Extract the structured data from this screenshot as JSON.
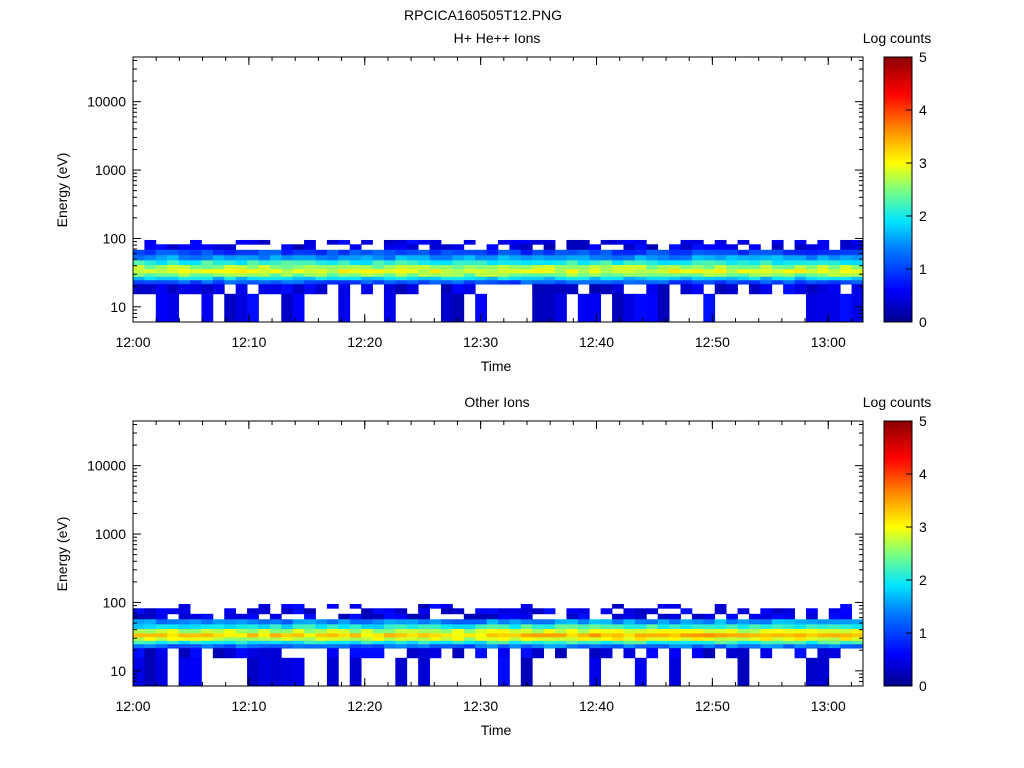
{
  "figure_title": "RPCICA160505T12.PNG",
  "chart_data": [
    {
      "type": "heatmap",
      "title": "H+ He++ Ions",
      "xlabel": "Time",
      "ylabel": "Energy (eV)",
      "yscale": "log",
      "ylim": [
        6,
        45000
      ],
      "xlim": [
        "12:00",
        "13:03"
      ],
      "x_ticks": [
        "12:00",
        "12:10",
        "12:20",
        "12:30",
        "12:40",
        "12:50",
        "13:00"
      ],
      "y_ticks": [
        "10",
        "100",
        "1000",
        "10000"
      ],
      "colorbar": {
        "label": "Log counts",
        "range": [
          0,
          5
        ],
        "ticks": [
          "0",
          "1",
          "2",
          "3",
          "4",
          "5"
        ]
      },
      "energy_band_eV": [
        22,
        95
      ],
      "intensity_profile": [
        {
          "energy_eV": 90,
          "log_counts": 0.5
        },
        {
          "energy_eV": 75,
          "log_counts": 0.7
        },
        {
          "energy_eV": 62,
          "log_counts": 1.0
        },
        {
          "energy_eV": 52,
          "log_counts": 1.5
        },
        {
          "energy_eV": 44,
          "log_counts": 2.1
        },
        {
          "energy_eV": 38,
          "log_counts": 2.6
        },
        {
          "energy_eV": 33,
          "log_counts": 2.9
        },
        {
          "energy_eV": 29,
          "log_counts": 2.5
        },
        {
          "energy_eV": 26,
          "log_counts": 1.8
        },
        {
          "energy_eV": 23,
          "log_counts": 1.1
        },
        {
          "energy_eV": 20,
          "log_counts": 0.6
        },
        {
          "energy_eV": 12,
          "log_counts": 0.3
        }
      ]
    },
    {
      "type": "heatmap",
      "title": "Other Ions",
      "xlabel": "Time",
      "ylabel": "Energy (eV)",
      "yscale": "log",
      "ylim": [
        6,
        45000
      ],
      "xlim": [
        "12:00",
        "13:03"
      ],
      "x_ticks": [
        "12:00",
        "12:10",
        "12:20",
        "12:30",
        "12:40",
        "12:50",
        "13:00"
      ],
      "y_ticks": [
        "10",
        "100",
        "1000",
        "10000"
      ],
      "colorbar": {
        "label": "Log counts",
        "range": [
          0,
          5
        ],
        "ticks": [
          "0",
          "1",
          "2",
          "3",
          "4",
          "5"
        ]
      },
      "energy_band_eV": [
        22,
        95
      ],
      "intensity_profile": [
        {
          "energy_eV": 90,
          "log_counts": 0.4
        },
        {
          "energy_eV": 75,
          "log_counts": 0.6
        },
        {
          "energy_eV": 62,
          "log_counts": 0.9
        },
        {
          "energy_eV": 52,
          "log_counts": 1.4
        },
        {
          "energy_eV": 44,
          "log_counts": 2.0
        },
        {
          "energy_eV": 38,
          "log_counts": 2.7
        },
        {
          "energy_eV": 33,
          "log_counts": 3.2
        },
        {
          "energy_eV": 29,
          "log_counts": 2.8
        },
        {
          "energy_eV": 26,
          "log_counts": 2.0
        },
        {
          "energy_eV": 23,
          "log_counts": 1.2
        },
        {
          "energy_eV": 20,
          "log_counts": 0.6
        },
        {
          "energy_eV": 12,
          "log_counts": 0.3
        }
      ]
    }
  ]
}
